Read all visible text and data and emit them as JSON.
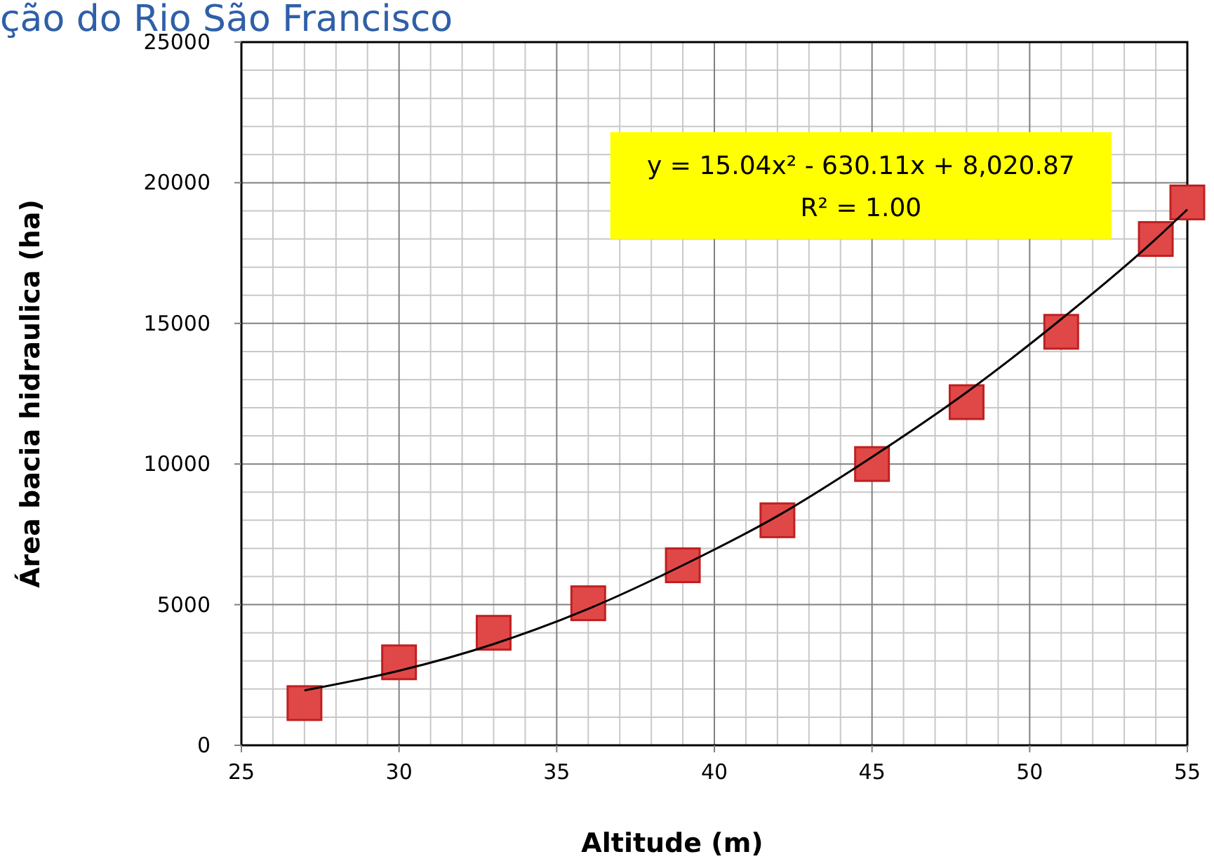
{
  "chart_data": {
    "type": "scatter",
    "title": "ção do Rio São Francisco",
    "xlabel": "Altitude (m)",
    "ylabel": "Área bacia hidraulica (ha)",
    "annotations": [
      "y = 15.04x² - 630.11x + 8,020.87",
      "R² = 1.00"
    ],
    "xlim": [
      25,
      55
    ],
    "xticks": [
      25,
      30,
      35,
      40,
      45,
      50,
      55
    ],
    "ylim": [
      0,
      25000
    ],
    "yticks": [
      0,
      5000,
      10000,
      15000,
      20000,
      25000
    ],
    "grid": true,
    "series": [
      {
        "color": "#e04848",
        "marker": "square",
        "x": [
          27,
          30,
          33,
          36,
          39,
          42,
          45,
          48,
          51,
          54,
          55
        ],
        "values": [
          1500,
          2950,
          4000,
          5050,
          6400,
          8000,
          10000,
          12200,
          14700,
          18000,
          19300
        ]
      },
      {
        "type": "line",
        "color": "#000000",
        "marker": "none",
        "line_style": "solid",
        "x": [
          27,
          30,
          33,
          36,
          39,
          42,
          45,
          48,
          51,
          54,
          55
        ],
        "values": [
          1950,
          2650,
          3600,
          4850,
          6400,
          8150,
          10250,
          12550,
          15150,
          18000,
          19050
        ]
      }
    ]
  }
}
